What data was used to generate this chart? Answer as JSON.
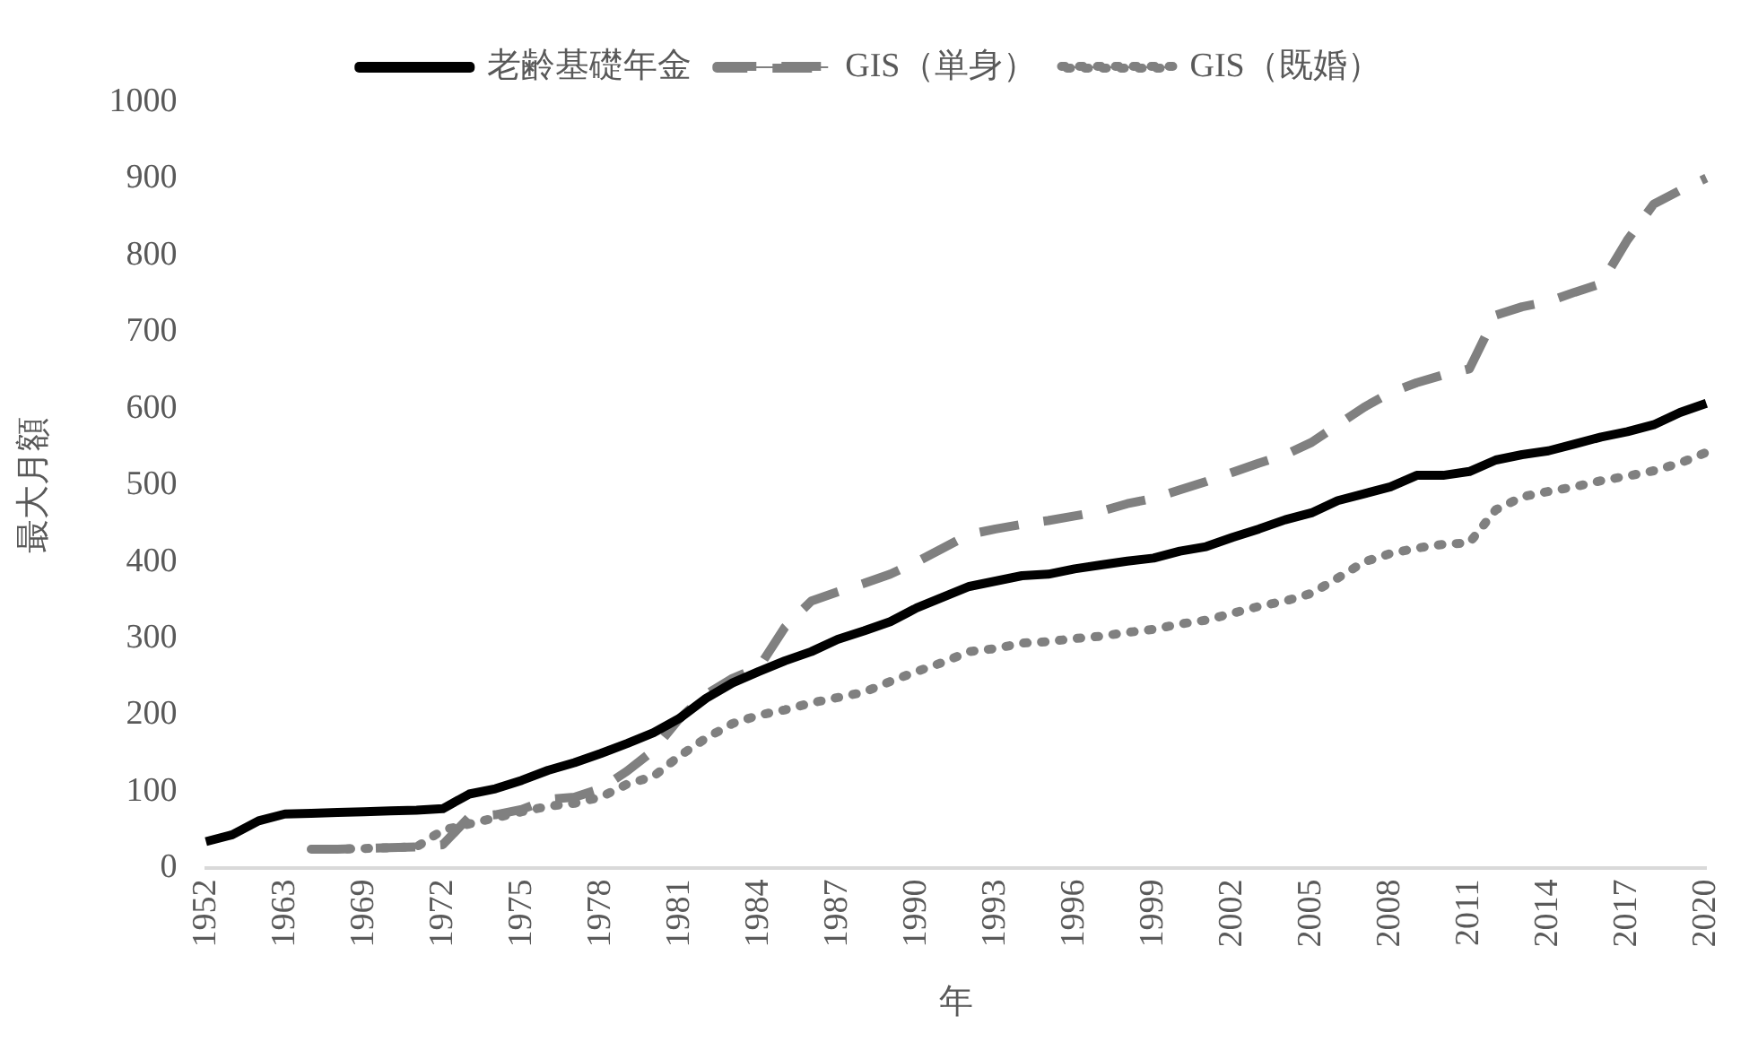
{
  "chart_data": {
    "type": "line",
    "xlabel": "年",
    "ylabel": "最大月額",
    "categories": [
      "1952",
      null,
      null,
      "1963",
      null,
      null,
      "1969",
      null,
      null,
      "1972",
      null,
      null,
      "1975",
      null,
      null,
      "1978",
      null,
      null,
      "1981",
      null,
      null,
      "1984",
      null,
      null,
      "1987",
      null,
      null,
      "1990",
      null,
      null,
      "1993",
      null,
      null,
      "1996",
      null,
      null,
      "1999",
      null,
      null,
      "2002",
      null,
      null,
      "2005",
      null,
      null,
      "2008",
      null,
      null,
      "2011",
      null,
      null,
      "2014",
      null,
      null,
      "2017",
      null,
      null,
      "2020"
    ],
    "series": [
      {
        "name": "老齢基礎年金",
        "color": "#000000",
        "line_style": "solid",
        "values": [
          35,
          44,
          62,
          71,
          72,
          73,
          74,
          75,
          76,
          78,
          97,
          104,
          115,
          128,
          138,
          150,
          163,
          177,
          196,
          222,
          242,
          257,
          271,
          283,
          299,
          310,
          322,
          340,
          354,
          368,
          375,
          382,
          384,
          391,
          396,
          401,
          405,
          414,
          420,
          432,
          443,
          455,
          464,
          480,
          489,
          498,
          513,
          513,
          518,
          533,
          540,
          545,
          554,
          563,
          570,
          579,
          595,
          607
        ]
      },
      {
        "name": "GIS（単身）",
        "color": "#808080",
        "line_style": "dashed",
        "values": [
          null,
          null,
          null,
          null,
          25,
          25,
          26,
          27,
          28,
          31,
          67,
          70,
          77,
          90,
          93,
          104,
          127,
          154,
          196,
          227,
          248,
          262,
          315,
          349,
          361,
          372,
          384,
          400,
          418,
          436,
          443,
          449,
          454,
          460,
          466,
          476,
          483,
          494,
          505,
          517,
          529,
          540,
          556,
          579,
          602,
          621,
          634,
          644,
          652,
          722,
          733,
          740,
          752,
          763,
          820,
          867,
          885,
          901
        ]
      },
      {
        "name": "GIS（既婚）",
        "color": "#808080",
        "line_style": "dotted",
        "values": [
          null,
          null,
          null,
          null,
          25,
          25,
          26,
          27,
          28,
          50,
          58,
          66,
          74,
          81,
          85,
          93,
          110,
          120,
          147,
          170,
          189,
          200,
          207,
          216,
          223,
          230,
          244,
          257,
          269,
          283,
          287,
          294,
          296,
          300,
          303,
          308,
          312,
          319,
          324,
          333,
          342,
          349,
          359,
          379,
          400,
          411,
          418,
          423,
          425,
          468,
          485,
          492,
          498,
          506,
          512,
          519,
          529,
          543
        ]
      }
    ],
    "ylim": [
      0,
      1000
    ],
    "yticks": [
      0,
      100,
      200,
      300,
      400,
      500,
      600,
      700,
      800,
      900,
      1000
    ],
    "grid": false,
    "legend": "top",
    "marker": "none"
  }
}
